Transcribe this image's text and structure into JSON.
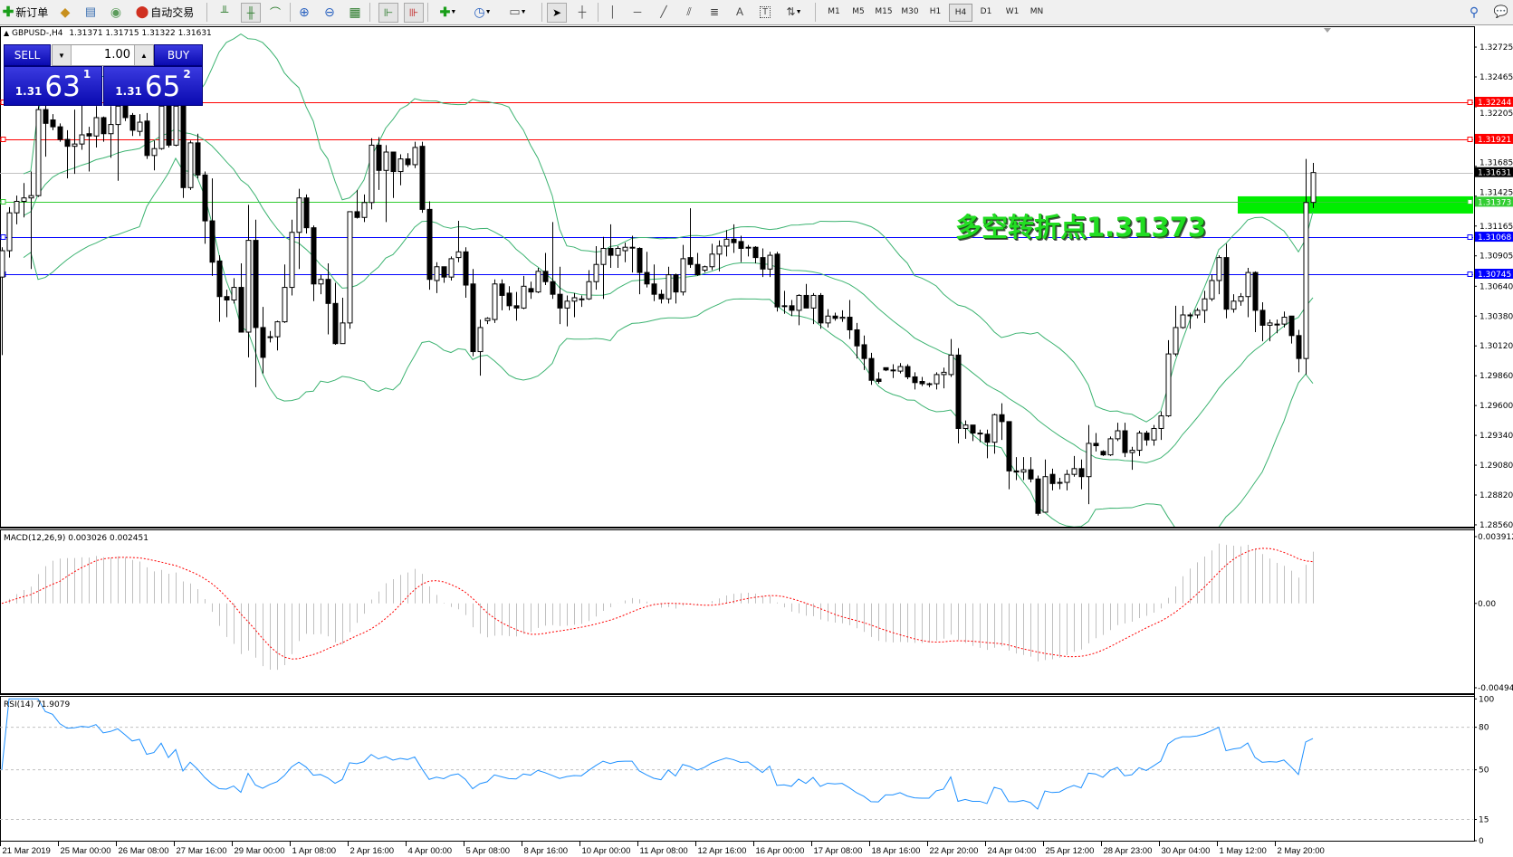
{
  "toolbar": {
    "new_order": "新订单",
    "auto_trading": "自动交易",
    "timeframes": [
      "M1",
      "M5",
      "M15",
      "M30",
      "H1",
      "H4",
      "D1",
      "W1",
      "MN"
    ],
    "active_timeframe": "H4"
  },
  "chart_header": {
    "symbol": "GBPUSD-,H4",
    "ohlc_text": "1.31371 1.31715 1.31322 1.31631"
  },
  "trade_panel": {
    "sell_label": "SELL",
    "buy_label": "BUY",
    "lot": "1.00",
    "sell_prefix": "1.31",
    "sell_big": "63",
    "sell_sup": "1",
    "buy_prefix": "1.31",
    "buy_big": "65",
    "buy_sup": "2"
  },
  "annotation": {
    "text": "多空转折点1.31373",
    "color": "#22dd22"
  },
  "chart_data": {
    "type": "candlestick",
    "symbol": "GBPUSD",
    "timeframe": "H4",
    "ohlc": [
      [
        1.3072,
        1.3098,
        1.3004,
        1.3095
      ],
      [
        1.3095,
        1.3133,
        1.3089,
        1.3128
      ],
      [
        1.3128,
        1.3143,
        1.3118,
        1.3138
      ],
      [
        1.3138,
        1.3154,
        1.3124,
        1.3141
      ],
      [
        1.3141,
        1.3164,
        1.3079,
        1.3143
      ],
      [
        1.3143,
        1.3221,
        1.3142,
        1.3218
      ],
      [
        1.3218,
        1.3222,
        1.3177,
        1.3206
      ],
      [
        1.3209,
        1.3214,
        1.32,
        1.3203
      ],
      [
        1.3203,
        1.3206,
        1.319,
        1.3192
      ],
      [
        1.3192,
        1.32,
        1.3158,
        1.3186
      ],
      [
        1.3186,
        1.3218,
        1.3162,
        1.3188
      ],
      [
        1.3188,
        1.3222,
        1.3183,
        1.3196
      ],
      [
        1.3197,
        1.3203,
        1.3164,
        1.3195
      ],
      [
        1.3195,
        1.3221,
        1.3185,
        1.3211
      ],
      [
        1.3211,
        1.3212,
        1.319,
        1.3197
      ],
      [
        1.3197,
        1.3221,
        1.3176,
        1.3205
      ],
      [
        1.3205,
        1.3227,
        1.3156,
        1.3221
      ],
      [
        1.3221,
        1.3224,
        1.3208,
        1.3211
      ],
      [
        1.3213,
        1.3215,
        1.3195,
        1.32
      ],
      [
        1.3199,
        1.3214,
        1.3195,
        1.3207
      ],
      [
        1.3208,
        1.3215,
        1.3175,
        1.3178
      ],
      [
        1.3178,
        1.3191,
        1.3165,
        1.3184
      ],
      [
        1.3184,
        1.3227,
        1.3183,
        1.3221
      ],
      [
        1.3221,
        1.3227,
        1.3185,
        1.3187
      ],
      [
        1.3187,
        1.3229,
        1.3186,
        1.3221
      ],
      [
        1.3221,
        1.3227,
        1.3141,
        1.315
      ],
      [
        1.315,
        1.3191,
        1.3148,
        1.3189
      ],
      [
        1.3189,
        1.3197,
        1.3158,
        1.3161
      ],
      [
        1.3161,
        1.3164,
        1.3101,
        1.3121
      ],
      [
        1.3121,
        1.3158,
        1.3073,
        1.3085
      ],
      [
        1.3086,
        1.3091,
        1.3033,
        1.3055
      ],
      [
        1.3055,
        1.3061,
        1.3037,
        1.3052
      ],
      [
        1.3052,
        1.3071,
        1.3049,
        1.3063
      ],
      [
        1.3063,
        1.3084,
        1.3024,
        1.3024
      ],
      [
        1.3024,
        1.3135,
        1.3002,
        1.3104
      ],
      [
        1.3104,
        1.3122,
        1.2976,
        1.3028
      ],
      [
        1.3028,
        1.3046,
        1.2988,
        1.3002
      ],
      [
        1.302,
        1.3025,
        1.3015,
        1.302
      ],
      [
        1.302,
        1.3034,
        1.3008,
        1.3033
      ],
      [
        1.3033,
        1.3083,
        1.3032,
        1.3063
      ],
      [
        1.3063,
        1.3122,
        1.3056,
        1.3111
      ],
      [
        1.3111,
        1.3149,
        1.3079,
        1.3141
      ],
      [
        1.3141,
        1.3144,
        1.311,
        1.3115
      ],
      [
        1.3115,
        1.3117,
        1.3051,
        1.3066
      ],
      [
        1.3066,
        1.3074,
        1.3057,
        1.307
      ],
      [
        1.307,
        1.3084,
        1.3022,
        1.3049
      ],
      [
        1.3049,
        1.3067,
        1.3013,
        1.3014
      ],
      [
        1.3014,
        1.3054,
        1.3014,
        1.3032
      ],
      [
        1.3032,
        1.3129,
        1.3027,
        1.3129
      ],
      [
        1.3129,
        1.3148,
        1.3123,
        1.3124
      ],
      [
        1.3124,
        1.3144,
        1.312,
        1.3137
      ],
      [
        1.3137,
        1.3193,
        1.3131,
        1.3187
      ],
      [
        1.3187,
        1.3194,
        1.3148,
        1.3165
      ],
      [
        1.3165,
        1.3187,
        1.312,
        1.3181
      ],
      [
        1.3181,
        1.3181,
        1.3141,
        1.3164
      ],
      [
        1.3164,
        1.3179,
        1.3152,
        1.3175
      ],
      [
        1.3175,
        1.318,
        1.3168,
        1.317
      ],
      [
        1.317,
        1.319,
        1.3167,
        1.3185
      ],
      [
        1.3186,
        1.319,
        1.3128,
        1.3131
      ],
      [
        1.3131,
        1.3138,
        1.3061,
        1.307
      ],
      [
        1.3069,
        1.3085,
        1.3058,
        1.3081
      ],
      [
        1.3081,
        1.3081,
        1.3067,
        1.3072
      ],
      [
        1.3072,
        1.309,
        1.3069,
        1.3088
      ],
      [
        1.3089,
        1.3121,
        1.3085,
        1.3094
      ],
      [
        1.3094,
        1.3098,
        1.3054,
        1.3065
      ],
      [
        1.3066,
        1.3079,
        1.3003,
        1.3007
      ],
      [
        1.3007,
        1.3035,
        1.2986,
        1.3028
      ],
      [
        1.3034,
        1.3037,
        1.3031,
        1.3036
      ],
      [
        1.3035,
        1.307,
        1.3032,
        1.3066
      ],
      [
        1.3066,
        1.307,
        1.3043,
        1.3056
      ],
      [
        1.3058,
        1.3064,
        1.3043,
        1.3047
      ],
      [
        1.3047,
        1.3059,
        1.3034,
        1.3045
      ],
      [
        1.3045,
        1.3073,
        1.3044,
        1.3064
      ],
      [
        1.3062,
        1.3068,
        1.3053,
        1.3059
      ],
      [
        1.3059,
        1.308,
        1.3058,
        1.3077
      ],
      [
        1.3077,
        1.3093,
        1.3065,
        1.3068
      ],
      [
        1.3068,
        1.312,
        1.3053,
        1.3057
      ],
      [
        1.3057,
        1.3081,
        1.3031,
        1.3045
      ],
      [
        1.3045,
        1.3056,
        1.3029,
        1.3051
      ],
      [
        1.3051,
        1.3058,
        1.3037,
        1.3054
      ],
      [
        1.3053,
        1.3056,
        1.3046,
        1.3053
      ],
      [
        1.3053,
        1.3078,
        1.3052,
        1.3068
      ],
      [
        1.3068,
        1.3099,
        1.3061,
        1.3083
      ],
      [
        1.3083,
        1.3107,
        1.3053,
        1.3097
      ],
      [
        1.3097,
        1.3118,
        1.308,
        1.3091
      ],
      [
        1.3091,
        1.3099,
        1.308,
        1.3097
      ],
      [
        1.3095,
        1.3102,
        1.3085,
        1.3098
      ],
      [
        1.3098,
        1.3108,
        1.3076,
        1.3098
      ],
      [
        1.3097,
        1.3098,
        1.3057,
        1.3076
      ],
      [
        1.3076,
        1.3094,
        1.3063,
        1.3066
      ],
      [
        1.3066,
        1.3083,
        1.3051,
        1.3057
      ],
      [
        1.3057,
        1.3061,
        1.3049,
        1.3053
      ],
      [
        1.3053,
        1.3081,
        1.3049,
        1.3074
      ],
      [
        1.3074,
        1.3075,
        1.3049,
        1.3059
      ],
      [
        1.3059,
        1.31,
        1.3056,
        1.3088
      ],
      [
        1.3089,
        1.3132,
        1.308,
        1.3083
      ],
      [
        1.3083,
        1.3093,
        1.3073,
        1.3074
      ],
      [
        1.3078,
        1.3082,
        1.3076,
        1.3081
      ],
      [
        1.3081,
        1.3101,
        1.3078,
        1.3092
      ],
      [
        1.3092,
        1.3104,
        1.3077,
        1.3099
      ],
      [
        1.3099,
        1.3113,
        1.309,
        1.3105
      ],
      [
        1.3105,
        1.3118,
        1.3093,
        1.3102
      ],
      [
        1.3103,
        1.3108,
        1.3085,
        1.3097
      ],
      [
        1.3098,
        1.31,
        1.309,
        1.3098
      ],
      [
        1.3098,
        1.3099,
        1.3084,
        1.3089
      ],
      [
        1.3089,
        1.3097,
        1.3072,
        1.3079
      ],
      [
        1.3079,
        1.3094,
        1.3072,
        1.3091
      ],
      [
        1.3092,
        1.3094,
        1.3042,
        1.3046
      ],
      [
        1.3047,
        1.306,
        1.304,
        1.3047
      ],
      [
        1.3047,
        1.3052,
        1.3038,
        1.3043
      ],
      [
        1.3043,
        1.3057,
        1.303,
        1.3056
      ],
      [
        1.3056,
        1.3066,
        1.3045,
        1.3045
      ],
      [
        1.3045,
        1.3058,
        1.3031,
        1.3056
      ],
      [
        1.3056,
        1.3058,
        1.3027,
        1.3032
      ],
      [
        1.3032,
        1.3044,
        1.3028,
        1.3038
      ],
      [
        1.3038,
        1.3041,
        1.3034,
        1.3036
      ],
      [
        1.3036,
        1.3043,
        1.3033,
        1.3037
      ],
      [
        1.3037,
        1.3052,
        1.3018,
        1.3026
      ],
      [
        1.3026,
        1.3032,
        1.3001,
        1.3012
      ],
      [
        1.3013,
        1.3021,
        1.2991,
        1.3001
      ],
      [
        1.3001,
        1.3006,
        1.2978,
        1.2982
      ],
      [
        1.2983,
        1.2989,
        1.2979,
        1.2981
      ],
      [
        1.2993,
        1.2993,
        1.299,
        1.2991
      ],
      [
        1.2991,
        1.2996,
        1.2984,
        1.2991
      ],
      [
        1.299,
        1.2997,
        1.2988,
        1.2994
      ],
      [
        1.2994,
        1.2996,
        1.2983,
        1.2985
      ],
      [
        1.2985,
        1.2989,
        1.2974,
        1.298
      ],
      [
        1.2981,
        1.2985,
        1.2977,
        1.2979
      ],
      [
        1.2979,
        1.298,
        1.2976,
        1.2979
      ],
      [
        1.2979,
        1.2989,
        1.2974,
        1.2987
      ],
      [
        1.2987,
        1.2993,
        1.2975,
        1.2989
      ],
      [
        1.2987,
        1.3018,
        1.2985,
        1.3004
      ],
      [
        1.3004,
        1.301,
        1.2927,
        1.294
      ],
      [
        1.294,
        1.2947,
        1.2931,
        1.2943
      ],
      [
        1.2943,
        1.2943,
        1.2929,
        1.2936
      ],
      [
        1.2936,
        1.2939,
        1.2928,
        1.2936
      ],
      [
        1.2935,
        1.2939,
        1.2914,
        1.2928
      ],
      [
        1.2928,
        1.2953,
        1.2918,
        1.2952
      ],
      [
        1.2952,
        1.2962,
        1.293,
        1.2946
      ],
      [
        1.2946,
        1.2946,
        1.2887,
        1.2903
      ],
      [
        1.2903,
        1.2915,
        1.2895,
        1.2902
      ],
      [
        1.2902,
        1.2915,
        1.2895,
        1.2904
      ],
      [
        1.2904,
        1.2915,
        1.2893,
        1.2896
      ],
      [
        1.2896,
        1.2899,
        1.2864,
        1.2866
      ],
      [
        1.2867,
        1.2913,
        1.2867,
        1.2898
      ],
      [
        1.29,
        1.2905,
        1.2886,
        1.2892
      ],
      [
        1.2893,
        1.2897,
        1.2887,
        1.2893
      ],
      [
        1.2893,
        1.2904,
        1.2886,
        1.29
      ],
      [
        1.29,
        1.2916,
        1.2898,
        1.2905
      ],
      [
        1.2905,
        1.2913,
        1.2887,
        1.2898
      ],
      [
        1.2898,
        1.2943,
        1.2874,
        1.2927
      ],
      [
        1.2927,
        1.2936,
        1.292,
        1.2925
      ],
      [
        1.292,
        1.2921,
        1.2916,
        1.2917
      ],
      [
        1.2917,
        1.2933,
        1.2916,
        1.2931
      ],
      [
        1.2931,
        1.2945,
        1.2929,
        1.2938
      ],
      [
        1.2938,
        1.2945,
        1.2915,
        1.2919
      ],
      [
        1.2919,
        1.2924,
        1.2904,
        1.2921
      ],
      [
        1.2921,
        1.2938,
        1.2916,
        1.2936
      ],
      [
        1.2936,
        1.2938,
        1.2925,
        1.293
      ],
      [
        1.293,
        1.2943,
        1.2925,
        1.294
      ],
      [
        1.294,
        1.2955,
        1.293,
        1.2951
      ],
      [
        1.2951,
        1.3017,
        1.295,
        1.3005
      ],
      [
        1.3005,
        1.3047,
        1.3003,
        1.3028
      ],
      [
        1.3028,
        1.3047,
        1.3027,
        1.3039
      ],
      [
        1.3039,
        1.3041,
        1.3027,
        1.3039
      ],
      [
        1.3039,
        1.3045,
        1.3036,
        1.3043
      ],
      [
        1.3043,
        1.306,
        1.3032,
        1.3053
      ],
      [
        1.3053,
        1.3074,
        1.3051,
        1.3069
      ],
      [
        1.3069,
        1.3091,
        1.3057,
        1.3089
      ],
      [
        1.3089,
        1.3101,
        1.3036,
        1.3044
      ],
      [
        1.3044,
        1.3057,
        1.3041,
        1.3051
      ],
      [
        1.3051,
        1.3058,
        1.3047,
        1.3055
      ],
      [
        1.3055,
        1.308,
        1.3037,
        1.3076
      ],
      [
        1.3076,
        1.3077,
        1.3024,
        1.3043
      ],
      [
        1.3043,
        1.305,
        1.3016,
        1.303
      ],
      [
        1.303,
        1.3035,
        1.3016,
        1.3032
      ],
      [
        1.3031,
        1.3035,
        1.3023,
        1.3031
      ],
      [
        1.3031,
        1.3042,
        1.3028,
        1.3037
      ],
      [
        1.3038,
        1.3038,
        1.3014,
        1.3021
      ],
      [
        1.3021,
        1.3026,
        1.2989,
        1.3001
      ],
      [
        1.3001,
        1.3175,
        1.2987,
        1.3137
      ],
      [
        1.31371,
        1.31715,
        1.31322,
        1.31631
      ]
    ],
    "price_axis_ticks": [
      "1.32725",
      "1.32465",
      "1.32205",
      "1.31685",
      "1.31425",
      "1.31165",
      "1.30905",
      "1.30640",
      "1.30380",
      "1.30120",
      "1.29860",
      "1.29600",
      "1.29340",
      "1.29080",
      "1.28820",
      "1.28560"
    ],
    "price_range": [
      1.2856,
      1.32725
    ],
    "levels": [
      {
        "price": 1.32244,
        "label": "1.32244",
        "color": "#ff0000"
      },
      {
        "price": 1.31921,
        "label": "1.31921",
        "color": "#ff0000"
      },
      {
        "price": 1.31631,
        "label": "1.31631",
        "color": "#c0c0c0",
        "label_bg": "#000000"
      },
      {
        "price": 1.31373,
        "label": "1.31373",
        "color": "#32cd32"
      },
      {
        "price": 1.31068,
        "label": "1.31068",
        "color": "#0000ff"
      },
      {
        "price": 1.30745,
        "label": "1.30745",
        "color": "#0000ff"
      }
    ],
    "zone": {
      "from": 1.31274,
      "to": 1.31424,
      "color": "#00ee00"
    },
    "bollinger": {
      "period": 20,
      "deviation": 2,
      "color": "#3cb371"
    },
    "date_labels": [
      "21 Mar 2019",
      "25 Mar 00:00",
      "26 Mar 08:00",
      "27 Mar 16:00",
      "29 Mar 00:00",
      "1 Apr 08:00",
      "2 Apr 16:00",
      "4 Apr 00:00",
      "5 Apr 08:00",
      "8 Apr 16:00",
      "10 Apr 00:00",
      "11 Apr 08:00",
      "12 Apr 16:00",
      "16 Apr 00:00",
      "17 Apr 08:00",
      "18 Apr 16:00",
      "22 Apr 20:00",
      "24 Apr 04:00",
      "25 Apr 12:00",
      "28 Apr 23:00",
      "30 Apr 04:00",
      "1 May 12:00",
      "2 May 20:00"
    ],
    "macd": {
      "label": "MACD(12,26,9) 0.003026 0.002451",
      "axis_ticks": [
        "0.003912",
        "0.00",
        "-0.004944"
      ],
      "range": [
        -0.004944,
        0.003912
      ],
      "histogram_color": "#c0c0c0",
      "signal_color": "#ff0000"
    },
    "rsi": {
      "label": "RSI(14) 71.9079",
      "axis_ticks": [
        "100",
        "80",
        "50",
        "15",
        "0"
      ],
      "levels": [
        80,
        50,
        15
      ],
      "range": [
        0,
        100
      ],
      "color": "#1e90ff"
    }
  }
}
